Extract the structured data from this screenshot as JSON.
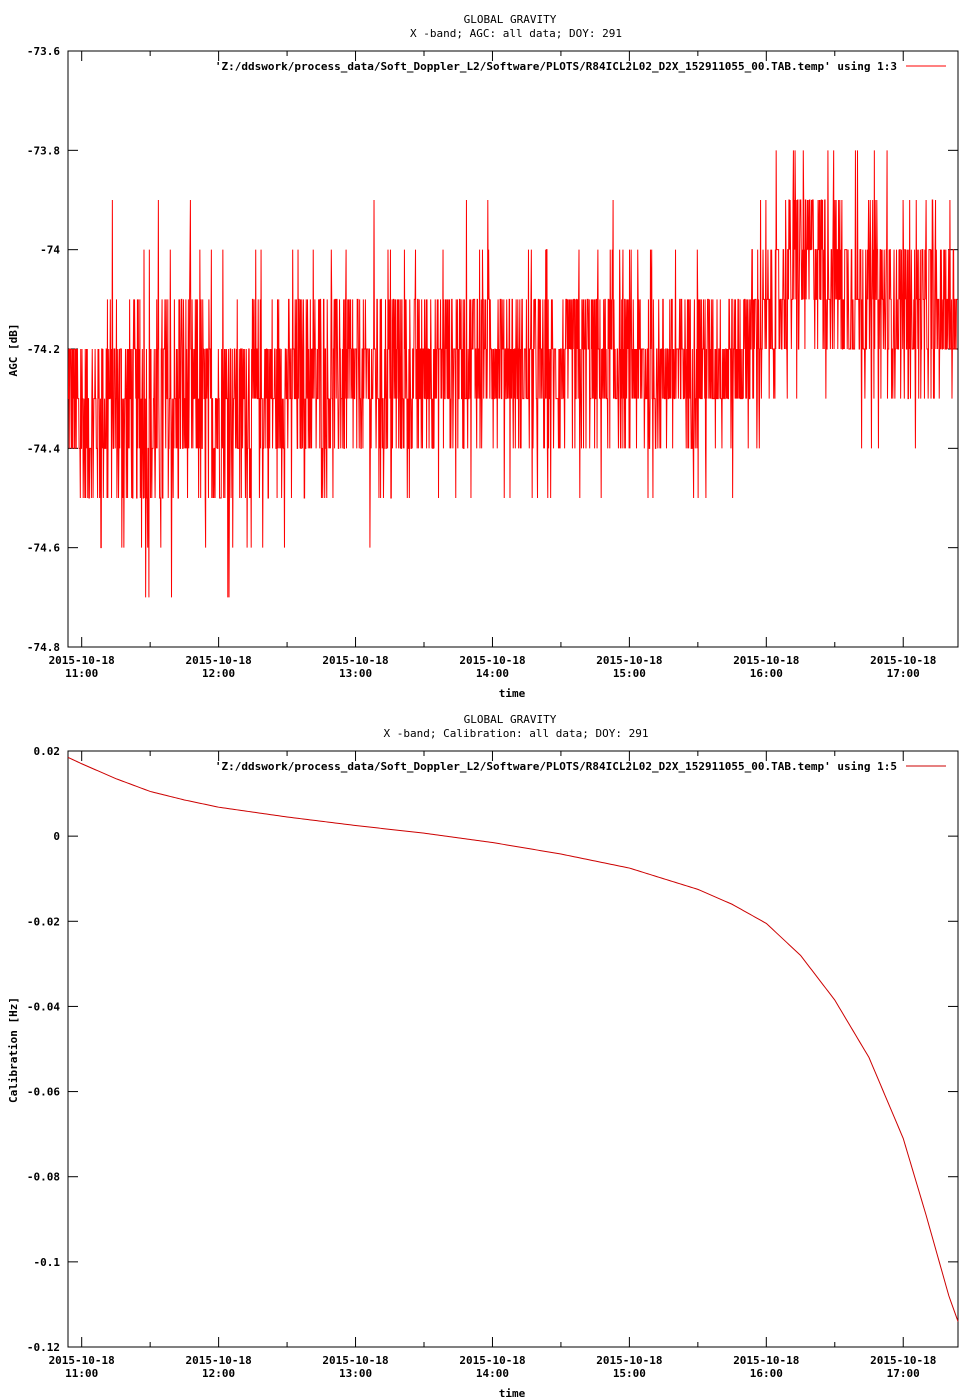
{
  "chart_data": [
    {
      "type": "line",
      "title": "GLOBAL GRAVITY",
      "subtitle": "X -band; AGC: all data; DOY: 291",
      "xlabel": "time",
      "ylabel": "AGC [dB]",
      "ylim": [
        -74.8,
        -73.6
      ],
      "yticks": [
        "-73.6",
        "-73.8",
        "-74",
        "-74.2",
        "-74.4",
        "-74.6",
        "-74.8"
      ],
      "xlim": [
        "2015-10-18 10:54",
        "2015-10-18 17:24"
      ],
      "xtick_dates": [
        "2015-10-18",
        "2015-10-18",
        "2015-10-18",
        "2015-10-18",
        "2015-10-18",
        "2015-10-18",
        "2015-10-18"
      ],
      "xtick_times": [
        "11:00",
        "12:00",
        "13:00",
        "14:00",
        "15:00",
        "16:00",
        "17:00"
      ],
      "line_color": "#ff0000",
      "grid": false,
      "legend_position": "top-right",
      "series": [
        {
          "name": "'Z:/ddswork/process_data/Soft_Doppler_L2/Software/PLOTS/R84ICL2L02_D2X_152911055_00.TAB.temp' using 1:3",
          "x": [
            "10:54",
            "11:00",
            "11:15",
            "11:30",
            "11:45",
            "12:00",
            "12:15",
            "12:30",
            "12:45",
            "13:00",
            "13:15",
            "13:30",
            "13:45",
            "14:00",
            "14:15",
            "14:30",
            "14:45",
            "15:00",
            "15:15",
            "15:30",
            "15:45",
            "16:00",
            "16:10",
            "16:20",
            "16:30",
            "16:40",
            "16:50",
            "17:00",
            "17:10",
            "17:20",
            "17:24"
          ],
          "y": [
            -74.3,
            -74.35,
            -74.3,
            -74.35,
            -74.3,
            -74.32,
            -74.3,
            -74.28,
            -74.25,
            -74.27,
            -74.25,
            -74.25,
            -74.22,
            -74.2,
            -74.25,
            -74.25,
            -74.22,
            -74.25,
            -74.25,
            -74.22,
            -74.22,
            -74.15,
            -74.05,
            -74.0,
            -74.05,
            -74.08,
            -74.1,
            -74.12,
            -74.12,
            -74.12,
            -74.12
          ],
          "spread": [
            0.2,
            0.22,
            0.25,
            0.28,
            0.25,
            0.22,
            0.22,
            0.2,
            0.2,
            0.22,
            0.2,
            0.2,
            0.2,
            0.18,
            0.18,
            0.18,
            0.2,
            0.18,
            0.18,
            0.2,
            0.2,
            0.18,
            0.2,
            0.2,
            0.2,
            0.2,
            0.2,
            0.18,
            0.18,
            0.15,
            0.12
          ]
        }
      ]
    },
    {
      "type": "line",
      "title": "GLOBAL GRAVITY",
      "subtitle": "X -band; Calibration: all data; DOY: 291",
      "xlabel": "time",
      "ylabel": "Calibration [Hz]",
      "ylim": [
        -0.12,
        0.02
      ],
      "yticks": [
        "0.02",
        "0",
        "-0.02",
        "-0.04",
        "-0.06",
        "-0.08",
        "-0.1",
        "-0.12"
      ],
      "xlim": [
        "2015-10-18 10:54",
        "2015-10-18 17:24"
      ],
      "xtick_dates": [
        "2015-10-18",
        "2015-10-18",
        "2015-10-18",
        "2015-10-18",
        "2015-10-18",
        "2015-10-18",
        "2015-10-18"
      ],
      "xtick_times": [
        "11:00",
        "12:00",
        "13:00",
        "14:00",
        "15:00",
        "16:00",
        "17:00"
      ],
      "line_color": "#cc0000",
      "grid": false,
      "legend_position": "top-right",
      "series": [
        {
          "name": "'Z:/ddswork/process_data/Soft_Doppler_L2/Software/PLOTS/R84ICL2L02_D2X_152911055_00.TAB.temp' using 1:5",
          "x": [
            "10:54",
            "11:00",
            "11:15",
            "11:30",
            "11:45",
            "12:00",
            "12:30",
            "13:00",
            "13:30",
            "14:00",
            "14:30",
            "15:00",
            "15:30",
            "15:45",
            "16:00",
            "16:15",
            "16:30",
            "16:45",
            "17:00",
            "17:10",
            "17:20",
            "17:24"
          ],
          "y": [
            0.0185,
            0.017,
            0.0135,
            0.0105,
            0.0085,
            0.0068,
            0.0045,
            0.0025,
            0.0007,
            -0.0015,
            -0.0042,
            -0.0075,
            -0.0125,
            -0.016,
            -0.0205,
            -0.028,
            -0.0385,
            -0.052,
            -0.071,
            -0.089,
            -0.108,
            -0.114
          ]
        }
      ]
    }
  ]
}
